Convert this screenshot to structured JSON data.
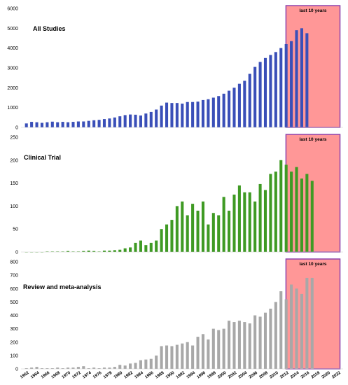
{
  "highlight": {
    "label": "last 10 years",
    "fill": "#ff6b6b",
    "border": "#8e44ad"
  },
  "chart_data": [
    {
      "type": "bar",
      "title": "All Studies",
      "color": "#3a4fb8",
      "ylim": [
        0,
        6000
      ],
      "yticks": [
        0,
        1000,
        2000,
        3000,
        4000,
        5000,
        6000
      ],
      "x_start": 1962,
      "x_tick_labels": [
        "1962",
        "1964",
        "1966",
        "1968",
        "1970",
        "1972",
        "1974",
        "1976",
        "1978",
        "1980",
        "1982",
        "1984",
        "1986",
        "1988",
        "1990",
        "1992",
        "1994",
        "1996",
        "1998",
        "2000",
        "2002",
        "2004",
        "2006",
        "2008",
        "2010",
        "2012",
        "2014",
        "2016",
        "2018",
        "2020",
        "2022"
      ],
      "values": [
        200,
        280,
        260,
        230,
        260,
        290,
        260,
        280,
        260,
        280,
        300,
        300,
        330,
        360,
        380,
        420,
        450,
        500,
        560,
        620,
        650,
        640,
        600,
        700,
        780,
        900,
        1100,
        1250,
        1230,
        1230,
        1200,
        1280,
        1280,
        1300,
        1380,
        1420,
        1500,
        1580,
        1700,
        1850,
        2000,
        2200,
        2350,
        2700,
        3050,
        3300,
        3500,
        3650,
        3800,
        4000,
        4200,
        4350,
        4900,
        5000,
        4750
      ]
    },
    {
      "type": "bar",
      "title": "Clinical Trial",
      "color": "#3f9a24",
      "ylim": [
        0,
        250
      ],
      "yticks": [
        0,
        50,
        100,
        150,
        200,
        250
      ],
      "x_start": 1962,
      "values": [
        0,
        0,
        0,
        0,
        1,
        1,
        1,
        1,
        2,
        1,
        1,
        2,
        3,
        2,
        1,
        3,
        3,
        4,
        5,
        8,
        10,
        20,
        25,
        15,
        20,
        25,
        50,
        60,
        70,
        100,
        110,
        80,
        105,
        90,
        110,
        60,
        85,
        80,
        120,
        90,
        125,
        145,
        130,
        130,
        110,
        148,
        135,
        170,
        175,
        200,
        190,
        175,
        185,
        160,
        170,
        155
      ]
    },
    {
      "type": "bar",
      "title": "Review and meta-analysis",
      "color": "#a8a8a8",
      "ylim": [
        0,
        800
      ],
      "yticks": [
        0,
        100,
        200,
        300,
        400,
        500,
        600,
        700,
        800
      ],
      "x_start": 1962,
      "values": [
        5,
        10,
        15,
        5,
        5,
        5,
        10,
        5,
        10,
        10,
        15,
        20,
        5,
        10,
        5,
        10,
        10,
        15,
        30,
        25,
        40,
        45,
        65,
        70,
        75,
        100,
        170,
        175,
        170,
        180,
        190,
        200,
        175,
        240,
        260,
        220,
        300,
        290,
        300,
        360,
        350,
        360,
        350,
        340,
        400,
        390,
        420,
        450,
        500,
        580,
        520,
        630,
        600,
        560,
        680,
        680
      ]
    }
  ]
}
